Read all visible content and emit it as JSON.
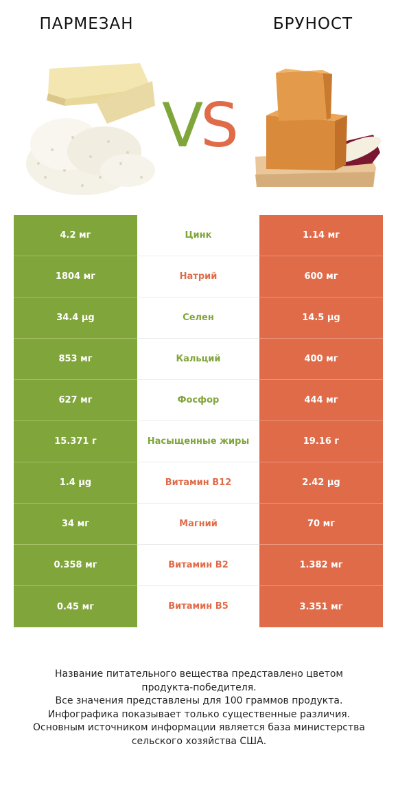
{
  "header": {
    "left_title": "ПАРМЕЗАН",
    "right_title": "БРУНОСТ",
    "vs_v": "V",
    "vs_s": "S"
  },
  "colors": {
    "winner_left": "#80a53a",
    "winner_right": "#e06b49"
  },
  "rows": [
    {
      "left": "4.2 мг",
      "name": "Цинк",
      "right": "1.14 мг",
      "winner": "left"
    },
    {
      "left": "1804 мг",
      "name": "Натрий",
      "right": "600 мг",
      "winner": "right"
    },
    {
      "left": "34.4 µg",
      "name": "Селен",
      "right": "14.5 µg",
      "winner": "left"
    },
    {
      "left": "853 мг",
      "name": "Кальций",
      "right": "400 мг",
      "winner": "left"
    },
    {
      "left": "627 мг",
      "name": "Фосфор",
      "right": "444 мг",
      "winner": "left"
    },
    {
      "left": "15.371 г",
      "name": "Насыщенные жиры",
      "right": "19.16 г",
      "winner": "left"
    },
    {
      "left": "1.4 µg",
      "name": "Витамин B12",
      "right": "2.42 µg",
      "winner": "right"
    },
    {
      "left": "34 мг",
      "name": "Магний",
      "right": "70 мг",
      "winner": "right"
    },
    {
      "left": "0.358 мг",
      "name": "Витамин B2",
      "right": "1.382 мг",
      "winner": "right"
    },
    {
      "left": "0.45 мг",
      "name": "Витамин B5",
      "right": "3.351 мг",
      "winner": "right"
    }
  ],
  "footer": {
    "line1": "Название питательного вещества представлено цветом",
    "line2": "продукта-победителя.",
    "line3": "Все значения представлены для 100 граммов продукта.",
    "line4": "Инфографика показывает только существенные различия.",
    "line5": "Основным источником информации является база министерства",
    "line6": "сельского хозяйства США."
  }
}
